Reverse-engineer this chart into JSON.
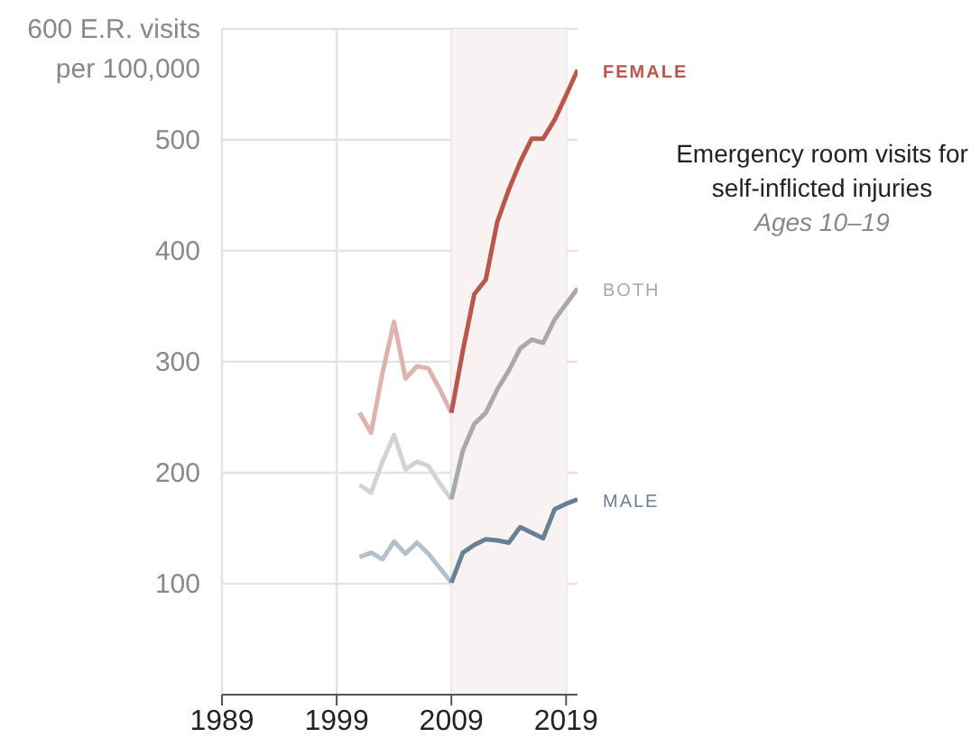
{
  "chart_data": {
    "type": "line",
    "title": "Emergency room visits for self-inflicted injuries",
    "subtitle": "Ages 10–19",
    "ylabel": "per 100,000",
    "xlim": [
      1989,
      2020
    ],
    "xticks": [
      1989,
      1999,
      2009,
      2019
    ],
    "ylim": [
      0,
      600
    ],
    "yticks": [
      100,
      200,
      300,
      400,
      500,
      {
        "value": 600,
        "label": "600 E.R. visits"
      }
    ],
    "grid": true,
    "legend": false,
    "marker": "none",
    "line_style": "solid",
    "bands": [
      {
        "axis": "x",
        "from": 2009,
        "to": 2019,
        "color": "#f8f2f2"
      }
    ],
    "series": [
      {
        "color": "#dfb3ad",
        "x": [
          2001,
          2002,
          2003,
          2004,
          2005,
          2006,
          2007,
          2008,
          2009
        ],
        "values": [
          254,
          236,
          290,
          336,
          285,
          296,
          294,
          275,
          254
        ]
      },
      {
        "color": "#d3d3d3",
        "x": [
          2001,
          2002,
          2003,
          2004,
          2005,
          2006,
          2007,
          2008,
          2009
        ],
        "values": [
          189,
          182,
          210,
          234,
          203,
          210,
          206,
          190,
          176
        ]
      },
      {
        "color": "#b3bfca",
        "x": [
          2001,
          2002,
          2003,
          2004,
          2005,
          2006,
          2007,
          2008,
          2009
        ],
        "values": [
          124,
          128,
          122,
          138,
          127,
          137,
          127,
          114,
          101
        ]
      },
      {
        "name": "FEMALE",
        "color": "#b9574c",
        "x": [
          2009,
          2010,
          2011,
          2012,
          2013,
          2014,
          2015,
          2016,
          2017,
          2018,
          2019,
          2020
        ],
        "values": [
          254,
          310,
          361,
          374,
          426,
          455,
          480,
          501,
          501,
          518,
          540,
          563
        ]
      },
      {
        "name": "BOTH",
        "color": "#a9a9a9",
        "x": [
          2009,
          2010,
          2011,
          2012,
          2013,
          2014,
          2015,
          2016,
          2017,
          2018,
          2019,
          2020
        ],
        "values": [
          176,
          220,
          244,
          254,
          275,
          292,
          312,
          320,
          317,
          338,
          352,
          366
        ]
      },
      {
        "name": "MALE",
        "color": "#6b7f94",
        "x": [
          2009,
          2010,
          2011,
          2012,
          2013,
          2014,
          2015,
          2016,
          2017,
          2018,
          2019,
          2020
        ],
        "values": [
          101,
          128,
          135,
          140,
          139,
          137,
          151,
          146,
          141,
          167,
          172,
          176
        ]
      }
    ]
  }
}
